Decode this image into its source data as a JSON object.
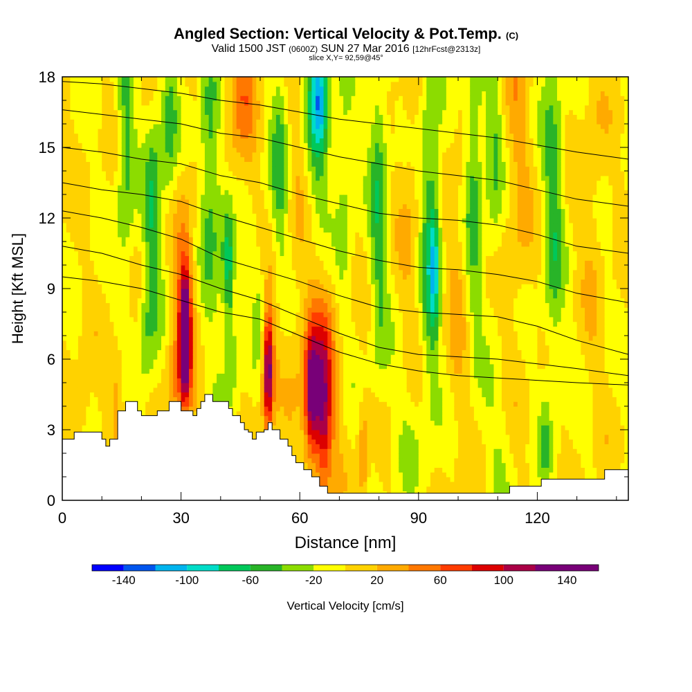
{
  "title": {
    "main": "Angled Section: Vertical Velocity & Pot.Temp.",
    "main_unit": "(C)",
    "valid_prefix": "Valid 1500 JST",
    "valid_utc": "(0600Z)",
    "valid_date": "SUN 27 Mar 2016",
    "forecast": "[12hrFcst@2313z]",
    "slice": "slice X,Y= 92,59@45°"
  },
  "chart_data": {
    "type": "heatmap",
    "xlabel": "Distance [nm]",
    "ylabel": "Height [Kft MSL]",
    "xlim": [
      0,
      143
    ],
    "ylim": [
      0,
      18
    ],
    "x_ticks": [
      "0",
      "30",
      "60",
      "90",
      "120"
    ],
    "x_tick_values": [
      0,
      30,
      60,
      90,
      120
    ],
    "y_ticks": [
      "0",
      "3",
      "6",
      "9",
      "12",
      "15",
      "18"
    ],
    "y_tick_values": [
      0,
      3,
      6,
      9,
      12,
      15,
      18
    ],
    "colorbar": {
      "label": "Vertical Velocity [cm/s]",
      "range": [
        -160,
        160
      ],
      "step": 20,
      "tick_labels": [
        "-140",
        "-100",
        "-60",
        "-20",
        "20",
        "60",
        "100",
        "140"
      ],
      "tick_values": [
        -140,
        -100,
        -60,
        -20,
        20,
        60,
        100,
        140
      ],
      "colors": [
        "#0000ff",
        "#0055ee",
        "#00b4ee",
        "#00dcc8",
        "#00c85a",
        "#28b428",
        "#8cdc00",
        "#ffff00",
        "#ffd200",
        "#ffaa00",
        "#ff7800",
        "#ff3c00",
        "#dc0000",
        "#aa0046",
        "#780078"
      ]
    },
    "terrain": {
      "x": [
        0,
        3,
        3,
        10,
        10,
        11,
        11,
        12,
        12,
        14,
        14,
        16,
        16,
        19,
        19,
        20,
        20,
        24,
        24,
        27,
        27,
        30,
        30,
        33,
        33,
        34,
        34,
        35,
        35,
        36,
        36,
        37,
        37,
        38,
        38,
        42,
        42,
        43,
        43,
        45,
        45,
        46,
        46,
        47,
        47,
        48,
        48,
        49,
        49,
        51,
        51,
        52,
        52,
        53,
        53,
        55,
        55,
        57,
        57,
        58,
        58,
        59,
        59,
        60,
        60,
        61,
        61,
        63,
        63,
        65,
        65,
        67,
        67,
        68,
        68,
        113,
        113,
        121,
        121,
        129,
        129,
        137,
        137,
        143
      ],
      "y": [
        2.6,
        2.6,
        2.9,
        2.9,
        2.6,
        2.6,
        2.3,
        2.3,
        2.6,
        2.6,
        3.8,
        3.8,
        4.2,
        4.2,
        3.8,
        3.8,
        3.6,
        3.6,
        3.8,
        3.8,
        4.2,
        4.2,
        3.8,
        3.8,
        3.6,
        3.6,
        3.9,
        3.9,
        4.2,
        4.2,
        4.5,
        4.5,
        4.5,
        4.5,
        4.2,
        4.2,
        3.9,
        3.9,
        3.6,
        3.6,
        3.3,
        3.3,
        3.0,
        3.0,
        2.9,
        2.9,
        2.6,
        2.6,
        2.9,
        2.9,
        3.0,
        3.0,
        3.3,
        3.3,
        3.0,
        3.0,
        2.6,
        2.6,
        2.3,
        2.3,
        1.9,
        1.9,
        1.6,
        1.6,
        1.6,
        1.6,
        1.3,
        1.3,
        1.0,
        1.0,
        0.6,
        0.6,
        0.3,
        0.3,
        0.3,
        0.3,
        0.6,
        0.6,
        0.9,
        0.9,
        0.9,
        0.9,
        1.3,
        1.3
      ]
    },
    "features": [
      {
        "x": 31,
        "y": 7.0,
        "sx": 0.9,
        "sy": 1.7,
        "w": 150
      },
      {
        "x": 31,
        "y": 8.0,
        "sx": 1.8,
        "sy": 3.5,
        "w": 60
      },
      {
        "x": 52,
        "y": 5.5,
        "sx": 0.8,
        "sy": 1.6,
        "w": 110
      },
      {
        "x": 52,
        "y": 6.0,
        "sx": 1.6,
        "sy": 2.5,
        "w": 40
      },
      {
        "x": 63,
        "y": 4.5,
        "sx": 1.2,
        "sy": 1.8,
        "w": 110
      },
      {
        "x": 66,
        "y": 3.5,
        "sx": 1.4,
        "sy": 2.2,
        "w": 80
      },
      {
        "x": 65,
        "y": 5.5,
        "sx": 3.0,
        "sy": 2.8,
        "w": 55
      },
      {
        "x": 76,
        "y": 1.8,
        "sx": 0.8,
        "sy": 1.4,
        "w": 50
      },
      {
        "x": 46,
        "y": 17.5,
        "sx": 2.5,
        "sy": 1.8,
        "w": 45
      },
      {
        "x": 28,
        "y": 5.0,
        "sx": 1.5,
        "sy": 1.6,
        "w": 35
      },
      {
        "x": 14,
        "y": 4.8,
        "sx": 1.2,
        "sy": 1.5,
        "w": 35
      },
      {
        "x": 5,
        "y": 4.0,
        "sx": 1.5,
        "sy": 1.2,
        "w": 25
      },
      {
        "x": 115,
        "y": 15.0,
        "sx": 2.2,
        "sy": 6.0,
        "w": 25
      },
      {
        "x": 88,
        "y": 14.0,
        "sx": 2.0,
        "sy": 6.0,
        "w": 18
      },
      {
        "x": 100,
        "y": 9.0,
        "sx": 2.0,
        "sy": 5.0,
        "w": 20
      },
      {
        "x": 70,
        "y": 12.0,
        "sx": 2.0,
        "sy": 5.0,
        "w": 18
      },
      {
        "x": 42,
        "y": 12.5,
        "sx": 2.0,
        "sy": 4.0,
        "w": 20
      },
      {
        "x": 60,
        "y": 12.0,
        "sx": 3.0,
        "sy": 5.0,
        "w": 18
      },
      {
        "x": 134,
        "y": 13.0,
        "sx": 2.0,
        "sy": 5.0,
        "w": 18
      },
      {
        "x": 16,
        "y": 15.0,
        "sx": 1.6,
        "sy": 4.0,
        "w": -48
      },
      {
        "x": 23,
        "y": 12.0,
        "sx": 1.6,
        "sy": 3.5,
        "w": -55
      },
      {
        "x": 27,
        "y": 16.0,
        "sx": 1.5,
        "sy": 2.5,
        "w": -45
      },
      {
        "x": 37,
        "y": 14.5,
        "sx": 1.6,
        "sy": 4.0,
        "w": -50
      },
      {
        "x": 42,
        "y": 10.0,
        "sx": 1.0,
        "sy": 1.8,
        "w": -70
      },
      {
        "x": 40,
        "y": 11.0,
        "sx": 1.8,
        "sy": 3.0,
        "w": -35
      },
      {
        "x": 55,
        "y": 14.5,
        "sx": 1.6,
        "sy": 4.0,
        "w": -45
      },
      {
        "x": 65,
        "y": 17.2,
        "sx": 1.6,
        "sy": 1.5,
        "w": -75
      },
      {
        "x": 64,
        "y": 15.0,
        "sx": 2.5,
        "sy": 3.5,
        "w": -45
      },
      {
        "x": 71,
        "y": 13.5,
        "sx": 1.8,
        "sy": 4.5,
        "w": -45
      },
      {
        "x": 80,
        "y": 13.0,
        "sx": 1.6,
        "sy": 5.5,
        "w": -50
      },
      {
        "x": 93,
        "y": 12.0,
        "sx": 1.8,
        "sy": 5.5,
        "w": -55
      },
      {
        "x": 94,
        "y": 10.0,
        "sx": 0.9,
        "sy": 1.8,
        "w": -55
      },
      {
        "x": 104,
        "y": 14.0,
        "sx": 1.6,
        "sy": 5.0,
        "w": -50
      },
      {
        "x": 109,
        "y": 15.0,
        "sx": 1.5,
        "sy": 4.0,
        "w": -35
      },
      {
        "x": 124,
        "y": 12.5,
        "sx": 1.8,
        "sy": 5.0,
        "w": -50
      },
      {
        "x": 21,
        "y": 6.5,
        "sx": 1.4,
        "sy": 2.0,
        "w": -30
      },
      {
        "x": 43,
        "y": 6.5,
        "sx": 1.5,
        "sy": 2.0,
        "w": -35
      },
      {
        "x": 50,
        "y": 8.5,
        "sx": 1.4,
        "sy": 2.0,
        "w": -30
      },
      {
        "x": 122,
        "y": 2.5,
        "sx": 1.0,
        "sy": 1.5,
        "w": -30
      },
      {
        "x": 88,
        "y": 3.0,
        "sx": 3.0,
        "sy": 2.0,
        "w": -18
      },
      {
        "x": 110,
        "y": 2.5,
        "sx": 3.0,
        "sy": 2.0,
        "w": -15
      }
    ],
    "isentropes": [
      {
        "label": "",
        "points": [
          [
            0,
            9.5
          ],
          [
            10,
            9.3
          ],
          [
            20,
            9.0
          ],
          [
            30,
            8.5
          ],
          [
            40,
            8.0
          ],
          [
            50,
            7.7
          ],
          [
            60,
            7.0
          ],
          [
            70,
            6.3
          ],
          [
            80,
            5.8
          ],
          [
            90,
            5.5
          ],
          [
            100,
            5.3
          ],
          [
            110,
            5.2
          ],
          [
            120,
            5.1
          ],
          [
            130,
            5.0
          ],
          [
            143,
            4.9
          ]
        ],
        "label_x": 0
      },
      {
        "label": "",
        "points": [
          [
            0,
            10.8
          ],
          [
            10,
            10.5
          ],
          [
            20,
            10.0
          ],
          [
            30,
            9.6
          ],
          [
            40,
            9.0
          ],
          [
            50,
            8.5
          ],
          [
            60,
            7.8
          ],
          [
            70,
            7.1
          ],
          [
            80,
            6.5
          ],
          [
            90,
            6.2
          ],
          [
            100,
            6.1
          ],
          [
            110,
            6.0
          ],
          [
            120,
            5.8
          ],
          [
            130,
            5.6
          ],
          [
            143,
            5.3
          ]
        ],
        "label_x": 0
      },
      {
        "label": "",
        "points": [
          [
            0,
            12.3
          ],
          [
            10,
            12.0
          ],
          [
            20,
            11.6
          ],
          [
            30,
            11.1
          ],
          [
            40,
            10.3
          ],
          [
            50,
            9.8
          ],
          [
            60,
            9.3
          ],
          [
            70,
            8.7
          ],
          [
            80,
            8.2
          ],
          [
            90,
            8.0
          ],
          [
            100,
            7.9
          ],
          [
            110,
            7.8
          ],
          [
            120,
            7.4
          ],
          [
            130,
            6.8
          ],
          [
            143,
            6.2
          ]
        ],
        "label_x": 0
      },
      {
        "label": "",
        "points": [
          [
            0,
            13.5
          ],
          [
            10,
            13.2
          ],
          [
            20,
            13.0
          ],
          [
            30,
            12.7
          ],
          [
            40,
            12.1
          ],
          [
            50,
            11.6
          ],
          [
            60,
            11.1
          ],
          [
            70,
            10.6
          ],
          [
            80,
            10.2
          ],
          [
            90,
            9.9
          ],
          [
            100,
            9.8
          ],
          [
            110,
            9.6
          ],
          [
            120,
            9.3
          ],
          [
            130,
            8.8
          ],
          [
            143,
            8.4
          ]
        ],
        "label_x": 0
      },
      {
        "label": "",
        "points": [
          [
            0,
            15.0
          ],
          [
            10,
            14.8
          ],
          [
            20,
            14.5
          ],
          [
            30,
            14.3
          ],
          [
            40,
            13.8
          ],
          [
            50,
            13.5
          ],
          [
            60,
            13.0
          ],
          [
            70,
            12.6
          ],
          [
            80,
            12.2
          ],
          [
            90,
            12.0
          ],
          [
            100,
            11.9
          ],
          [
            110,
            11.7
          ],
          [
            120,
            11.3
          ],
          [
            130,
            10.8
          ],
          [
            143,
            10.5
          ]
        ],
        "label_x": 0
      },
      {
        "label": "",
        "points": [
          [
            0,
            16.6
          ],
          [
            10,
            16.4
          ],
          [
            20,
            16.2
          ],
          [
            30,
            16.0
          ],
          [
            40,
            15.6
          ],
          [
            50,
            15.4
          ],
          [
            60,
            15.0
          ],
          [
            70,
            14.6
          ],
          [
            80,
            14.3
          ],
          [
            90,
            14.0
          ],
          [
            100,
            13.8
          ],
          [
            110,
            13.6
          ],
          [
            120,
            13.2
          ],
          [
            130,
            12.8
          ],
          [
            143,
            12.5
          ]
        ],
        "label_x": 0
      },
      {
        "label": "",
        "points": [
          [
            0,
            17.8
          ],
          [
            10,
            17.7
          ],
          [
            20,
            17.5
          ],
          [
            30,
            17.3
          ],
          [
            40,
            17.0
          ],
          [
            50,
            16.8
          ],
          [
            60,
            16.5
          ],
          [
            70,
            16.2
          ],
          [
            80,
            16.0
          ],
          [
            90,
            15.8
          ],
          [
            100,
            15.6
          ],
          [
            110,
            15.4
          ],
          [
            120,
            15.1
          ],
          [
            130,
            14.8
          ],
          [
            143,
            14.5
          ]
        ],
        "label_x": 0
      }
    ]
  }
}
